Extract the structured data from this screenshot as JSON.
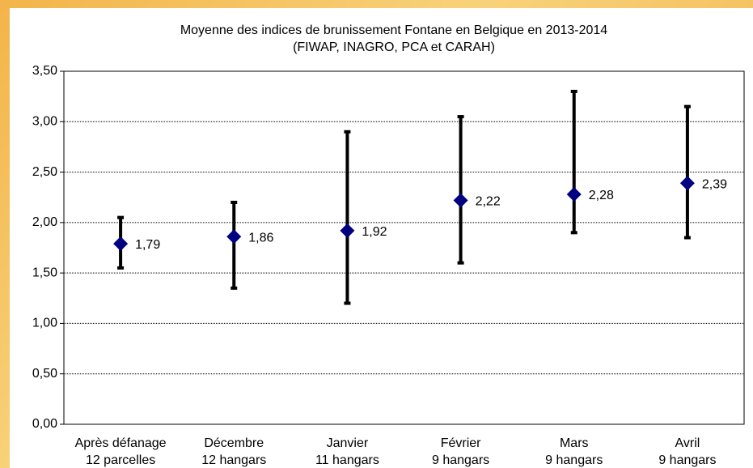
{
  "chart_data": {
    "type": "errorbar",
    "title": "Moyenne des indices de brunissement Fontane en Belgique en 2013-2014",
    "subtitle": "(FIWAP, INAGRO, PCA et CARAH)",
    "categories": [
      "Après défanage",
      "Décembre",
      "Janvier",
      "Février",
      "Mars",
      "Avril"
    ],
    "category_sublabels": [
      "12 parcelles",
      "12 hangars",
      "11 hangars",
      "9 hangars",
      "9 hangars",
      "9 hangars"
    ],
    "series": [
      {
        "color": "#000080",
        "values": [
          1.79,
          1.86,
          1.92,
          2.22,
          2.28,
          2.39
        ],
        "value_labels": [
          "1,79",
          "1,86",
          "1,92",
          "2,22",
          "2,28",
          "2,39"
        ],
        "low": [
          1.55,
          1.35,
          1.2,
          1.6,
          1.9,
          1.85
        ],
        "high": [
          2.05,
          2.2,
          2.9,
          3.05,
          3.3,
          3.15
        ]
      }
    ],
    "ylim": [
      0,
      3.5
    ],
    "yticks": [
      {
        "value": 0,
        "label": "0,00"
      },
      {
        "value": 0.5,
        "label": "0,50"
      },
      {
        "value": 1,
        "label": "1,00"
      },
      {
        "value": 1.5,
        "label": "1,50"
      },
      {
        "value": 2,
        "label": "2,00"
      },
      {
        "value": 2.5,
        "label": "2,50"
      },
      {
        "value": 3,
        "label": "3,00"
      },
      {
        "value": 3.5,
        "label": "3,50"
      }
    ],
    "grid": true
  }
}
